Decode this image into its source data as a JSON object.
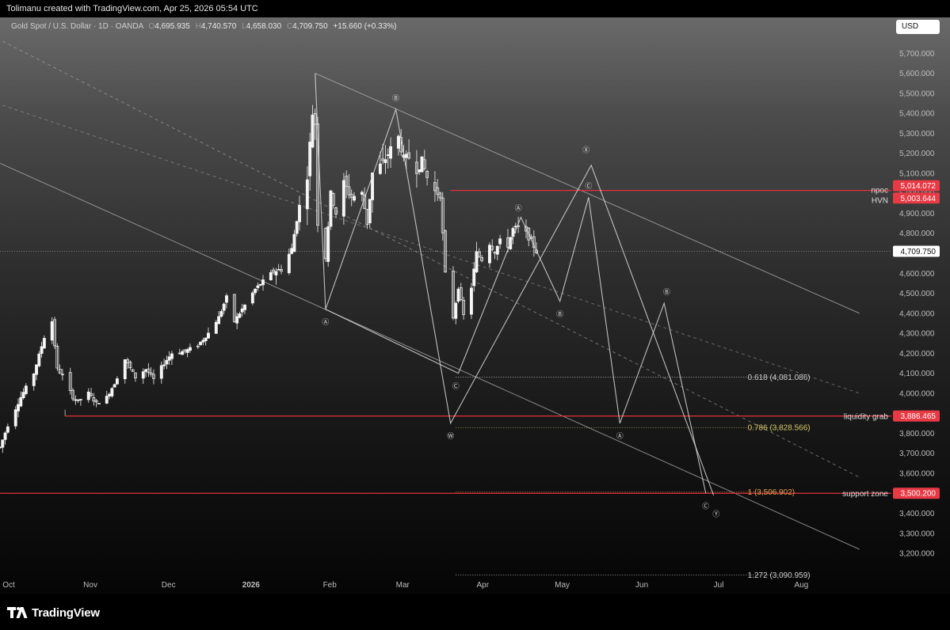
{
  "header": {
    "attribution": "Tolimanu created with TradingView.com, Apr 25, 2026 05:54 UTC"
  },
  "legend": {
    "symbol": "Gold Spot / U.S. Dollar · 1D · OANDA",
    "open_key": "O",
    "open": "4,695.935",
    "high_key": "H",
    "high": "4,740.570",
    "low_key": "L",
    "low": "4,658.030",
    "close_key": "C",
    "close": "4,709.750",
    "change": "+15.660 (+0.33%)"
  },
  "currency_button": "USD",
  "brand": "TradingView",
  "chart_data": {
    "type": "candlestick",
    "instrument": "Gold Spot / U.S. Dollar",
    "interval": "1D",
    "source": "OANDA",
    "ylim": [
      3050,
      5800
    ],
    "xlim": [
      "2025-09-30",
      "2026-08-20"
    ],
    "y_ticks": [
      3200,
      3300,
      3400,
      3500,
      3600,
      3700,
      3800,
      3900,
      4000,
      4100,
      4200,
      4300,
      4400,
      4500,
      4600,
      4700,
      4800,
      4900,
      5000,
      5100,
      5200,
      5300,
      5400,
      5500,
      5600,
      5700
    ],
    "y_tick_labels": [
      "3,200.000",
      "3,300.000",
      "3,400.000",
      "3,500.000",
      "3,600.000",
      "3,700.000",
      "3,800.000",
      "3,900.000",
      "4,000.000",
      "4,100.000",
      "4,200.000",
      "4,300.000",
      "4,400.000",
      "4,500.000",
      "4,600.000",
      "4,700.000",
      "4,800.000",
      "4,900.000",
      "5,000.000",
      "5,100.000",
      "5,200.000",
      "5,300.000",
      "5,400.000",
      "5,500.000",
      "5,600.000",
      "5,700.000"
    ],
    "x_ticks": [
      {
        "date": "2025-10-01",
        "label": "Oct",
        "bold": false
      },
      {
        "date": "2025-11-01",
        "label": "Nov",
        "bold": false
      },
      {
        "date": "2025-12-01",
        "label": "Dec",
        "bold": false
      },
      {
        "date": "2026-01-01",
        "label": "2026",
        "bold": true
      },
      {
        "date": "2026-02-01",
        "label": "Feb",
        "bold": false
      },
      {
        "date": "2026-03-01",
        "label": "Mar",
        "bold": false
      },
      {
        "date": "2026-04-01",
        "label": "Apr",
        "bold": false
      },
      {
        "date": "2026-05-01",
        "label": "May",
        "bold": false
      },
      {
        "date": "2026-06-01",
        "label": "Jun",
        "bold": false
      },
      {
        "date": "2026-07-01",
        "label": "Jul",
        "bold": false
      },
      {
        "date": "2026-08-01",
        "label": "Aug",
        "bold": false
      }
    ],
    "price_path": [
      [
        "2025-09-30",
        3730
      ],
      [
        "2025-10-03",
        3840
      ],
      [
        "2025-10-08",
        3980
      ],
      [
        "2025-10-13",
        4100
      ],
      [
        "2025-10-17",
        4280
      ],
      [
        "2025-10-20",
        4360
      ],
      [
        "2025-10-22",
        4120
      ],
      [
        "2025-10-24",
        4090
      ],
      [
        "2025-10-28",
        3980
      ],
      [
        "2025-10-30",
        3960
      ],
      [
        "2025-11-03",
        4000
      ],
      [
        "2025-11-06",
        3950
      ],
      [
        "2025-11-10",
        3980
      ],
      [
        "2025-11-13",
        4050
      ],
      [
        "2025-11-17",
        4170
      ],
      [
        "2025-11-21",
        4080
      ],
      [
        "2025-11-25",
        4120
      ],
      [
        "2025-11-28",
        4070
      ],
      [
        "2025-12-02",
        4150
      ],
      [
        "2025-12-05",
        4200
      ],
      [
        "2025-12-10",
        4210
      ],
      [
        "2025-12-15",
        4240
      ],
      [
        "2025-12-19",
        4300
      ],
      [
        "2025-12-23",
        4380
      ],
      [
        "2025-12-26",
        4480
      ],
      [
        "2025-12-29",
        4360
      ],
      [
        "2026-01-02",
        4440
      ],
      [
        "2026-01-06",
        4520
      ],
      [
        "2026-01-09",
        4560
      ],
      [
        "2026-01-13",
        4610
      ],
      [
        "2026-01-16",
        4620
      ],
      [
        "2026-01-20",
        4720
      ],
      [
        "2026-01-22",
        4870
      ],
      [
        "2026-01-24",
        5000
      ],
      [
        "2026-01-26",
        5090
      ],
      [
        "2026-01-28",
        5400
      ],
      [
        "2026-01-29",
        5350
      ],
      [
        "2026-01-30",
        4850
      ],
      [
        "2026-02-02",
        4680
      ],
      [
        "2026-02-04",
        5000
      ],
      [
        "2026-02-06",
        4900
      ],
      [
        "2026-02-09",
        5050
      ],
      [
        "2026-02-12",
        4980
      ],
      [
        "2026-02-16",
        5000
      ],
      [
        "2026-02-18",
        4850
      ],
      [
        "2026-02-20",
        5100
      ],
      [
        "2026-02-24",
        5150
      ],
      [
        "2026-02-27",
        5220
      ],
      [
        "2026-03-02",
        5280
      ],
      [
        "2026-03-04",
        5170
      ],
      [
        "2026-03-06",
        5180
      ],
      [
        "2026-03-09",
        5120
      ],
      [
        "2026-03-11",
        5160
      ],
      [
        "2026-03-13",
        5080
      ],
      [
        "2026-03-16",
        5010
      ],
      [
        "2026-03-18",
        4990
      ],
      [
        "2026-03-20",
        4600
      ],
      [
        "2026-03-23",
        4380
      ],
      [
        "2026-03-25",
        4530
      ],
      [
        "2026-03-27",
        4390
      ],
      [
        "2026-03-30",
        4530
      ],
      [
        "2026-04-01",
        4700
      ],
      [
        "2026-04-03",
        4670
      ],
      [
        "2026-04-06",
        4750
      ],
      [
        "2026-04-08",
        4710
      ],
      [
        "2026-04-10",
        4760
      ],
      [
        "2026-04-13",
        4740
      ],
      [
        "2026-04-15",
        4820
      ],
      [
        "2026-04-17",
        4830
      ],
      [
        "2026-04-20",
        4800
      ],
      [
        "2026-04-22",
        4760
      ],
      [
        "2026-04-24",
        4709.75
      ]
    ],
    "horizontal_levels": [
      {
        "name": "npoc",
        "price": 5014.072,
        "label": "5,014.072"
      },
      {
        "name": "HVN",
        "price": 5003.644,
        "label": "5,003.644"
      },
      {
        "name": "last",
        "price": 4709.75,
        "label": "4,709.750"
      },
      {
        "name": "liquidity grab",
        "price": 3886.465,
        "label": "3,886.465"
      },
      {
        "name": "support zone",
        "price": 3500.2,
        "label": "3,500.200"
      }
    ],
    "level_texts": {
      "npoc": "npoc",
      "hvn": "HVN",
      "liquidity": "liquidity grab",
      "support": "support zone"
    },
    "fib_levels": [
      {
        "ratio": "0.618",
        "price": 4081.086,
        "label": "0.618 (4,081.086)",
        "color": "#cfcfcf"
      },
      {
        "ratio": "0.786",
        "price": 3828.566,
        "label": "0.786 (3,828.566)",
        "color": "#d7c96a"
      },
      {
        "ratio": "1",
        "price": 3506.902,
        "label": "1 (3,506.902)",
        "color": "#e0a050"
      },
      {
        "ratio": "1.272",
        "price": 3090.959,
        "label": "1.272 (3,090.959)",
        "color": "#cfcfcf"
      }
    ],
    "wave_path_1": [
      [
        "2026-01-29",
        5600
      ],
      [
        "2026-02-02",
        4420
      ],
      [
        "2026-03-01",
        5420
      ],
      [
        "2026-03-22",
        3850
      ],
      [
        "2026-05-15",
        5140
      ],
      [
        "2026-07-01",
        3490
      ]
    ],
    "wave_path_2": [
      [
        "2026-02-02",
        4420
      ],
      [
        "2026-03-25",
        4100
      ],
      [
        "2026-04-18",
        4880
      ],
      [
        "2026-05-03",
        4460
      ],
      [
        "2026-05-14",
        4980
      ],
      [
        "2026-05-26",
        3850
      ],
      [
        "2026-06-12",
        4450
      ],
      [
        "2026-06-28",
        3500
      ]
    ],
    "wave_labels": [
      {
        "text": "Ⓐ",
        "date": "2026-02-02",
        "price": 4360
      },
      {
        "text": "Ⓑ",
        "date": "2026-02-29",
        "price": 5480
      },
      {
        "text": "Ⓒ",
        "date": "2026-03-24",
        "price": 4040
      },
      {
        "text": "Ⓦ",
        "date": "2026-03-22",
        "price": 3790,
        "big": true
      },
      {
        "text": "Ⓐ",
        "date": "2026-04-17",
        "price": 4930
      },
      {
        "text": "Ⓑ",
        "date": "2026-05-03",
        "price": 4400
      },
      {
        "text": "Ⓧ",
        "date": "2026-05-13",
        "price": 5220,
        "big": true
      },
      {
        "text": "Ⓒ",
        "date": "2026-05-14",
        "price": 5040
      },
      {
        "text": "Ⓐ",
        "date": "2026-05-26",
        "price": 3790
      },
      {
        "text": "Ⓑ",
        "date": "2026-06-13",
        "price": 4510
      },
      {
        "text": "Ⓒ",
        "date": "2026-06-28",
        "price": 3440
      },
      {
        "text": "Ⓨ",
        "date": "2026-07-02",
        "price": 3400,
        "big": true
      }
    ],
    "colors": {
      "candle": "#f5f5f5",
      "wave": "#d9d9d9",
      "level": "#e0303c",
      "tag_bg": "#e83a45",
      "channel": "#b5b5b5"
    }
  }
}
